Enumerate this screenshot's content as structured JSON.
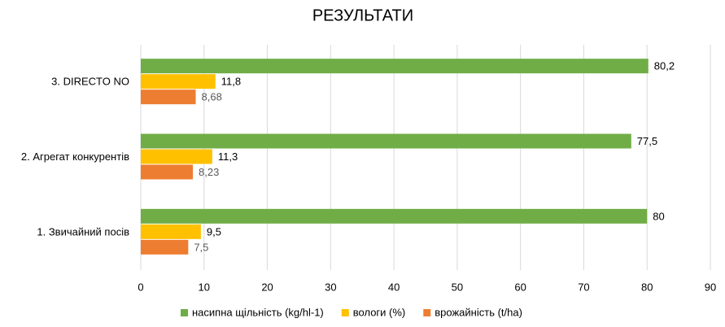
{
  "chart_data": {
    "type": "bar",
    "orientation": "horizontal",
    "title": "РЕЗУЛЬТАТИ",
    "categories": [
      "1. Звичайний посів",
      "2. Агрегат конкурентів",
      "3. DIRECTO NO"
    ],
    "series": [
      {
        "name": "насипна щільність (kg/hl-1)",
        "color": "#70ad47",
        "values": [
          80,
          77.5,
          80.2
        ],
        "value_labels": [
          "80",
          "77,5",
          "80,2"
        ]
      },
      {
        "name": "вологи (%)",
        "color": "#ffc000",
        "values": [
          9.5,
          11.3,
          11.8
        ],
        "value_labels": [
          "9,5",
          "11,3",
          "11,8"
        ]
      },
      {
        "name": "врожайність (t/ha)",
        "color": "#ed7d31",
        "values": [
          7.5,
          8.23,
          8.68
        ],
        "value_labels": [
          "7,5",
          "8,23",
          "8,68"
        ]
      }
    ],
    "xlim": [
      0,
      90
    ],
    "xticks": [
      0,
      10,
      20,
      30,
      40,
      50,
      60,
      70,
      80,
      90
    ],
    "grid": true,
    "legend": "bottom"
  }
}
